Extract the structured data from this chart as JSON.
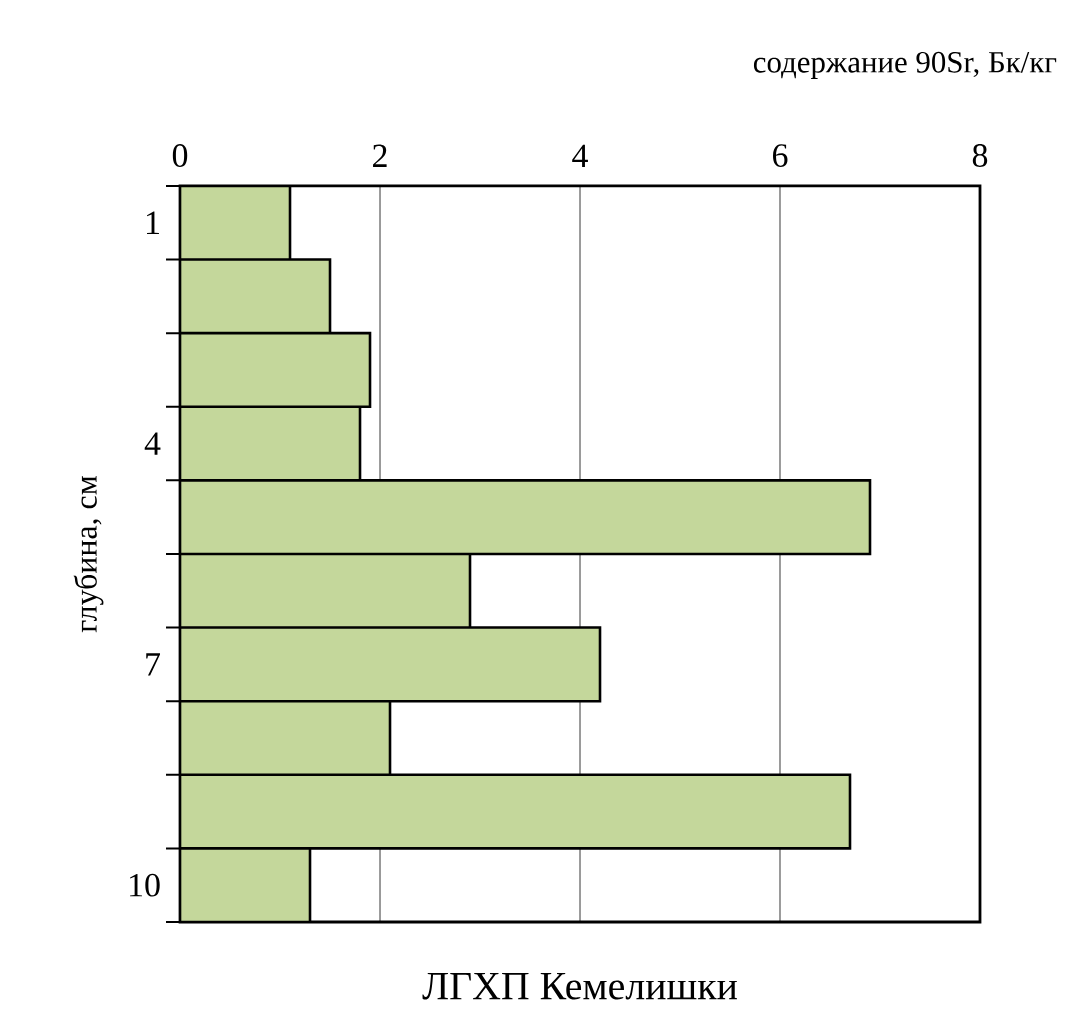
{
  "chart_data": {
    "type": "bar",
    "orientation": "horizontal",
    "title": "ЛГХП Кемелишки",
    "xlabel": "содержание 90Sr, Бк/кг",
    "ylabel": "глубина, см",
    "categories": [
      "1",
      null,
      null,
      "4",
      null,
      null,
      "7",
      null,
      null,
      "10"
    ],
    "values": [
      1.1,
      1.5,
      1.9,
      1.8,
      6.9,
      2.9,
      4.2,
      2.1,
      6.7,
      1.3
    ],
    "color": "#c4d79b",
    "xlim": [
      0,
      8
    ],
    "xticks": [
      0,
      2,
      4,
      6,
      8
    ],
    "grid": "x"
  }
}
